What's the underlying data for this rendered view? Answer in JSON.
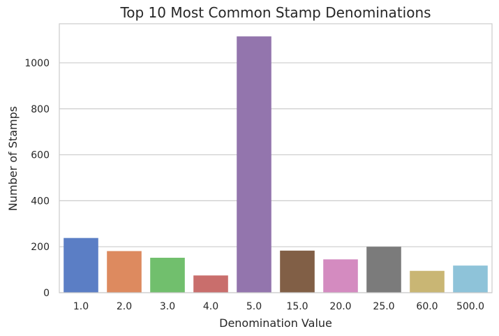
{
  "chart_data": {
    "type": "bar",
    "title": "Top 10 Most Common Stamp Denominations",
    "xlabel": "Denomination Value",
    "ylabel": "Number of Stamps",
    "categories": [
      "1.0",
      "2.0",
      "3.0",
      "4.0",
      "5.0",
      "15.0",
      "20.0",
      "25.0",
      "60.0",
      "500.0"
    ],
    "values": [
      238,
      181,
      152,
      75,
      1115,
      183,
      145,
      200,
      95,
      118
    ],
    "ylim": [
      0,
      1170
    ],
    "yticks": [
      0,
      200,
      400,
      600,
      800,
      1000
    ],
    "grid": true,
    "colors": [
      "#5b7ec5",
      "#dd8a5f",
      "#71bf6d",
      "#c96e6c",
      "#9375ad",
      "#815f46",
      "#d48bc0",
      "#7b7b7b",
      "#c9b674",
      "#8ec3d9"
    ]
  }
}
